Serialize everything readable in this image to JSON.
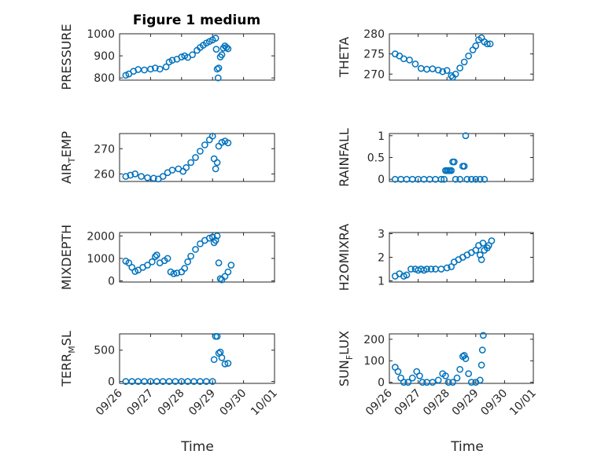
{
  "figure": {
    "title": "Figure 1 medium",
    "xlabel": "Time",
    "marker_color": "#0072bd",
    "x_tick_labels": [
      "09/26",
      "09/27",
      "09/28",
      "09/29",
      "09/30",
      "10/01"
    ],
    "x_range_days": [
      0,
      5
    ]
  },
  "chart_data": [
    {
      "type": "scatter",
      "ylabel": "PRESSURE",
      "ylim": [
        790,
        1000
      ],
      "yticks": [
        800,
        900,
        1000
      ],
      "yticklabels": [
        "800",
        "900",
        "1000"
      ],
      "x_tick_labels_shown": false,
      "grid": true,
      "points": [
        [
          0.2,
          812
        ],
        [
          0.3,
          818
        ],
        [
          0.45,
          830
        ],
        [
          0.6,
          838
        ],
        [
          0.8,
          836
        ],
        [
          1.0,
          840
        ],
        [
          1.15,
          845
        ],
        [
          1.3,
          840
        ],
        [
          1.5,
          850
        ],
        [
          1.6,
          872
        ],
        [
          1.7,
          880
        ],
        [
          1.85,
          885
        ],
        [
          2.0,
          895
        ],
        [
          2.1,
          900
        ],
        [
          2.2,
          893
        ],
        [
          2.35,
          905
        ],
        [
          2.5,
          925
        ],
        [
          2.6,
          938
        ],
        [
          2.7,
          948
        ],
        [
          2.8,
          958
        ],
        [
          2.9,
          965
        ],
        [
          3.0,
          972
        ],
        [
          3.1,
          980
        ],
        [
          3.12,
          930
        ],
        [
          3.15,
          840
        ],
        [
          3.18,
          800
        ],
        [
          3.2,
          845
        ],
        [
          3.25,
          895
        ],
        [
          3.3,
          905
        ],
        [
          3.35,
          935
        ],
        [
          3.4,
          945
        ],
        [
          3.45,
          938
        ],
        [
          3.5,
          932
        ]
      ]
    },
    {
      "type": "scatter",
      "ylabel": "THETA",
      "ylim": [
        268.5,
        280
      ],
      "yticks": [
        270,
        275,
        280
      ],
      "yticklabels": [
        "270",
        "275",
        "280"
      ],
      "x_tick_labels_shown": false,
      "grid": true,
      "points": [
        [
          0.2,
          275
        ],
        [
          0.35,
          274.5
        ],
        [
          0.5,
          273.8
        ],
        [
          0.7,
          273.5
        ],
        [
          0.9,
          272.5
        ],
        [
          1.1,
          271.4
        ],
        [
          1.3,
          271.2
        ],
        [
          1.5,
          271.3
        ],
        [
          1.7,
          271.0
        ],
        [
          1.85,
          270.6
        ],
        [
          2.0,
          270.9
        ],
        [
          2.15,
          269.6
        ],
        [
          2.2,
          269.2
        ],
        [
          2.3,
          270.0
        ],
        [
          2.45,
          271.5
        ],
        [
          2.6,
          273.0
        ],
        [
          2.75,
          274.5
        ],
        [
          2.9,
          276.0
        ],
        [
          3.0,
          277.0
        ],
        [
          3.1,
          278.5
        ],
        [
          3.2,
          279.0
        ],
        [
          3.3,
          278.0
        ],
        [
          3.4,
          277.5
        ],
        [
          3.5,
          277.5
        ]
      ]
    },
    {
      "type": "scatter",
      "ylabel": "AIR_TEMP",
      "ylabel_main": "AIR",
      "ylabel_sub": "T",
      "ylabel_rest": "EMP",
      "ylim": [
        257,
        276
      ],
      "yticks": [
        260,
        270
      ],
      "yticklabels": [
        "260",
        "270"
      ],
      "x_tick_labels_shown": false,
      "grid": true,
      "points": [
        [
          0.2,
          259
        ],
        [
          0.35,
          259.5
        ],
        [
          0.5,
          260
        ],
        [
          0.7,
          259
        ],
        [
          0.9,
          258.5
        ],
        [
          1.1,
          258.3
        ],
        [
          1.25,
          258
        ],
        [
          1.4,
          259
        ],
        [
          1.55,
          260.5
        ],
        [
          1.7,
          261.5
        ],
        [
          1.9,
          262
        ],
        [
          2.05,
          261
        ],
        [
          2.15,
          262.5
        ],
        [
          2.3,
          264.5
        ],
        [
          2.45,
          266.5
        ],
        [
          2.6,
          269
        ],
        [
          2.75,
          271.5
        ],
        [
          2.9,
          273.5
        ],
        [
          3.0,
          275
        ],
        [
          3.05,
          266
        ],
        [
          3.1,
          262
        ],
        [
          3.15,
          264.5
        ],
        [
          3.2,
          271
        ],
        [
          3.3,
          272.5
        ],
        [
          3.4,
          273
        ],
        [
          3.5,
          272.3
        ]
      ]
    },
    {
      "type": "scatter",
      "ylabel": "RAINFALL",
      "ylim": [
        -0.05,
        1.05
      ],
      "yticks": [
        0,
        0.5,
        1
      ],
      "yticklabels": [
        "0",
        "0.5",
        "1"
      ],
      "x_tick_labels_shown": false,
      "grid": true,
      "points": [
        [
          0.2,
          0
        ],
        [
          0.4,
          0
        ],
        [
          0.6,
          0
        ],
        [
          0.8,
          0
        ],
        [
          1.0,
          0
        ],
        [
          1.2,
          0
        ],
        [
          1.4,
          0
        ],
        [
          1.6,
          0
        ],
        [
          1.8,
          0
        ],
        [
          1.9,
          0
        ],
        [
          1.95,
          0.2
        ],
        [
          2.0,
          0.2
        ],
        [
          2.05,
          0.2
        ],
        [
          2.1,
          0.2
        ],
        [
          2.15,
          0.2
        ],
        [
          2.2,
          0.4
        ],
        [
          2.25,
          0.4
        ],
        [
          2.3,
          0
        ],
        [
          2.45,
          0
        ],
        [
          2.55,
          0.3
        ],
        [
          2.6,
          0.3
        ],
        [
          2.65,
          1.0
        ],
        [
          2.7,
          0
        ],
        [
          2.85,
          0
        ],
        [
          3.0,
          0
        ],
        [
          3.15,
          0
        ],
        [
          3.3,
          0
        ]
      ]
    },
    {
      "type": "scatter",
      "ylabel": "MIXDEPTH",
      "ylim": [
        -50,
        2150
      ],
      "yticks": [
        0,
        1000,
        2000
      ],
      "yticklabels": [
        "0",
        "1000",
        "2000"
      ],
      "x_tick_labels_shown": false,
      "grid": true,
      "points": [
        [
          0.2,
          880
        ],
        [
          0.3,
          800
        ],
        [
          0.4,
          600
        ],
        [
          0.5,
          420
        ],
        [
          0.6,
          480
        ],
        [
          0.75,
          600
        ],
        [
          0.9,
          700
        ],
        [
          1.05,
          850
        ],
        [
          1.15,
          1080
        ],
        [
          1.2,
          1150
        ],
        [
          1.3,
          800
        ],
        [
          1.45,
          900
        ],
        [
          1.55,
          1000
        ],
        [
          1.65,
          400
        ],
        [
          1.75,
          320
        ],
        [
          1.85,
          350
        ],
        [
          2.0,
          400
        ],
        [
          2.1,
          560
        ],
        [
          2.2,
          850
        ],
        [
          2.3,
          1100
        ],
        [
          2.45,
          1400
        ],
        [
          2.6,
          1650
        ],
        [
          2.75,
          1800
        ],
        [
          2.9,
          1900
        ],
        [
          3.0,
          1950
        ],
        [
          3.05,
          1700
        ],
        [
          3.1,
          1800
        ],
        [
          3.15,
          2000
        ],
        [
          3.2,
          800
        ],
        [
          3.25,
          100
        ],
        [
          3.3,
          50
        ],
        [
          3.4,
          200
        ],
        [
          3.5,
          400
        ],
        [
          3.6,
          700
        ]
      ]
    },
    {
      "type": "scatter",
      "ylabel": "H2OMIXRA",
      "ylim": [
        0.95,
        3.05
      ],
      "yticks": [
        1,
        2,
        3
      ],
      "yticklabels": [
        "1",
        "2",
        "3"
      ],
      "x_tick_labels_shown": false,
      "grid": true,
      "points": [
        [
          0.2,
          1.2
        ],
        [
          0.35,
          1.3
        ],
        [
          0.5,
          1.2
        ],
        [
          0.6,
          1.25
        ],
        [
          0.75,
          1.5
        ],
        [
          0.9,
          1.5
        ],
        [
          1.0,
          1.45
        ],
        [
          1.1,
          1.5
        ],
        [
          1.2,
          1.45
        ],
        [
          1.3,
          1.5
        ],
        [
          1.45,
          1.5
        ],
        [
          1.6,
          1.5
        ],
        [
          1.8,
          1.5
        ],
        [
          2.0,
          1.55
        ],
        [
          2.15,
          1.6
        ],
        [
          2.25,
          1.8
        ],
        [
          2.4,
          1.9
        ],
        [
          2.55,
          2.0
        ],
        [
          2.7,
          2.1
        ],
        [
          2.85,
          2.2
        ],
        [
          3.0,
          2.3
        ],
        [
          3.1,
          2.5
        ],
        [
          3.15,
          2.1
        ],
        [
          3.2,
          1.9
        ],
        [
          3.25,
          2.6
        ],
        [
          3.3,
          2.3
        ],
        [
          3.4,
          2.4
        ],
        [
          3.45,
          2.5
        ],
        [
          3.55,
          2.7
        ]
      ]
    },
    {
      "type": "scatter",
      "ylabel": "TERR_MSL",
      "ylabel_main": "TERR",
      "ylabel_sub": "M",
      "ylabel_rest": "SL",
      "ylim": [
        -30,
        760
      ],
      "yticks": [
        0,
        500
      ],
      "yticklabels": [
        "0",
        "500"
      ],
      "x_tick_labels_shown": true,
      "grid": true,
      "points": [
        [
          0.2,
          0
        ],
        [
          0.4,
          0
        ],
        [
          0.6,
          0
        ],
        [
          0.8,
          0
        ],
        [
          1.0,
          0
        ],
        [
          1.2,
          0
        ],
        [
          1.4,
          0
        ],
        [
          1.6,
          0
        ],
        [
          1.8,
          0
        ],
        [
          2.0,
          0
        ],
        [
          2.2,
          0
        ],
        [
          2.4,
          0
        ],
        [
          2.6,
          0
        ],
        [
          2.8,
          0
        ],
        [
          3.0,
          0
        ],
        [
          3.05,
          350
        ],
        [
          3.1,
          720
        ],
        [
          3.15,
          720
        ],
        [
          3.2,
          450
        ],
        [
          3.25,
          470
        ],
        [
          3.3,
          380
        ],
        [
          3.4,
          280
        ],
        [
          3.5,
          290
        ]
      ]
    },
    {
      "type": "scatter",
      "ylabel": "SUN_FLUX",
      "ylabel_main": "SUN",
      "ylabel_sub": "F",
      "ylabel_rest": "LUX",
      "ylim": [
        -5,
        225
      ],
      "yticks": [
        0,
        100,
        200
      ],
      "yticklabels": [
        "0",
        "100",
        "200"
      ],
      "x_tick_labels_shown": true,
      "grid": true,
      "points": [
        [
          0.2,
          70
        ],
        [
          0.3,
          50
        ],
        [
          0.4,
          20
        ],
        [
          0.5,
          0
        ],
        [
          0.65,
          0
        ],
        [
          0.8,
          20
        ],
        [
          0.95,
          50
        ],
        [
          1.05,
          30
        ],
        [
          1.15,
          0
        ],
        [
          1.3,
          0
        ],
        [
          1.5,
          0
        ],
        [
          1.7,
          10
        ],
        [
          1.85,
          40
        ],
        [
          1.95,
          30
        ],
        [
          2.05,
          0
        ],
        [
          2.2,
          0
        ],
        [
          2.35,
          20
        ],
        [
          2.45,
          60
        ],
        [
          2.55,
          120
        ],
        [
          2.6,
          125
        ],
        [
          2.65,
          110
        ],
        [
          2.75,
          40
        ],
        [
          2.85,
          0
        ],
        [
          3.0,
          0
        ],
        [
          3.15,
          10
        ],
        [
          3.2,
          80
        ],
        [
          3.23,
          150
        ],
        [
          3.26,
          218
        ]
      ]
    }
  ]
}
